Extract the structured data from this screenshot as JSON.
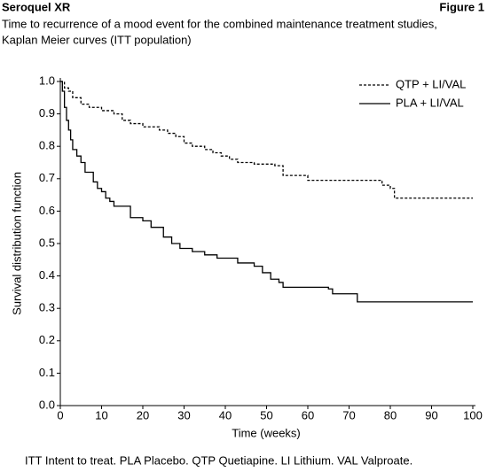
{
  "header": {
    "title": "Seroquel XR",
    "figure": "Figure 1"
  },
  "chart_data": {
    "type": "line",
    "drawstyle": "steps-post",
    "subtitle": [
      "Time to recurrence of a mood event for the combined maintenance treatment studies,",
      "Kaplan Meier curves (ITT population)"
    ],
    "xlabel": "Time (weeks)",
    "ylabel": "Survival distribution function",
    "xlim": [
      0,
      100
    ],
    "ylim": [
      0,
      1
    ],
    "xticks": [
      0,
      10,
      20,
      30,
      40,
      50,
      60,
      70,
      80,
      90,
      100
    ],
    "yticks": [
      {
        "value": 0,
        "label": "0.0"
      },
      0.1,
      0.2,
      0.3,
      0.4,
      0.5,
      0.6,
      0.7,
      0.8,
      0.9,
      {
        "value": 1,
        "label": "1.0"
      }
    ],
    "legend": "upper right",
    "series": [
      {
        "name": "QTP + LI/VAL",
        "color": "#000000",
        "linestyle": "dashed",
        "x": [
          0,
          1,
          2,
          3,
          5,
          7,
          10,
          13,
          15,
          17,
          20,
          24,
          26,
          28,
          30,
          32,
          35,
          37,
          39,
          41,
          43,
          47,
          52,
          54,
          60,
          78,
          80,
          81,
          100
        ],
        "values": [
          1,
          0.98,
          0.97,
          0.95,
          0.93,
          0.92,
          0.91,
          0.9,
          0.88,
          0.87,
          0.86,
          0.85,
          0.84,
          0.83,
          0.81,
          0.8,
          0.79,
          0.78,
          0.77,
          0.76,
          0.75,
          0.745,
          0.74,
          0.71,
          0.695,
          0.68,
          0.67,
          0.64,
          0.64
        ]
      },
      {
        "name": "PLA + LI/VAL",
        "color": "#000000",
        "linestyle": "solid",
        "x": [
          0,
          0.5,
          1,
          1.5,
          2,
          2.5,
          3,
          4,
          5,
          6,
          8,
          9,
          10,
          11,
          12,
          13,
          17,
          20,
          22,
          25,
          27,
          29,
          32,
          35,
          38,
          43,
          47,
          49,
          51,
          53,
          54,
          65,
          66,
          72,
          100
        ],
        "values": [
          1,
          0.97,
          0.92,
          0.88,
          0.85,
          0.82,
          0.79,
          0.77,
          0.75,
          0.72,
          0.69,
          0.67,
          0.66,
          0.64,
          0.63,
          0.615,
          0.58,
          0.57,
          0.55,
          0.52,
          0.5,
          0.485,
          0.475,
          0.465,
          0.455,
          0.44,
          0.43,
          0.41,
          0.39,
          0.38,
          0.365,
          0.36,
          0.345,
          0.32,
          0.32
        ]
      }
    ]
  },
  "footnote": "ITT Intent to treat. PLA Placebo. QTP Quetiapine. LI Lithium. VAL Valproate."
}
